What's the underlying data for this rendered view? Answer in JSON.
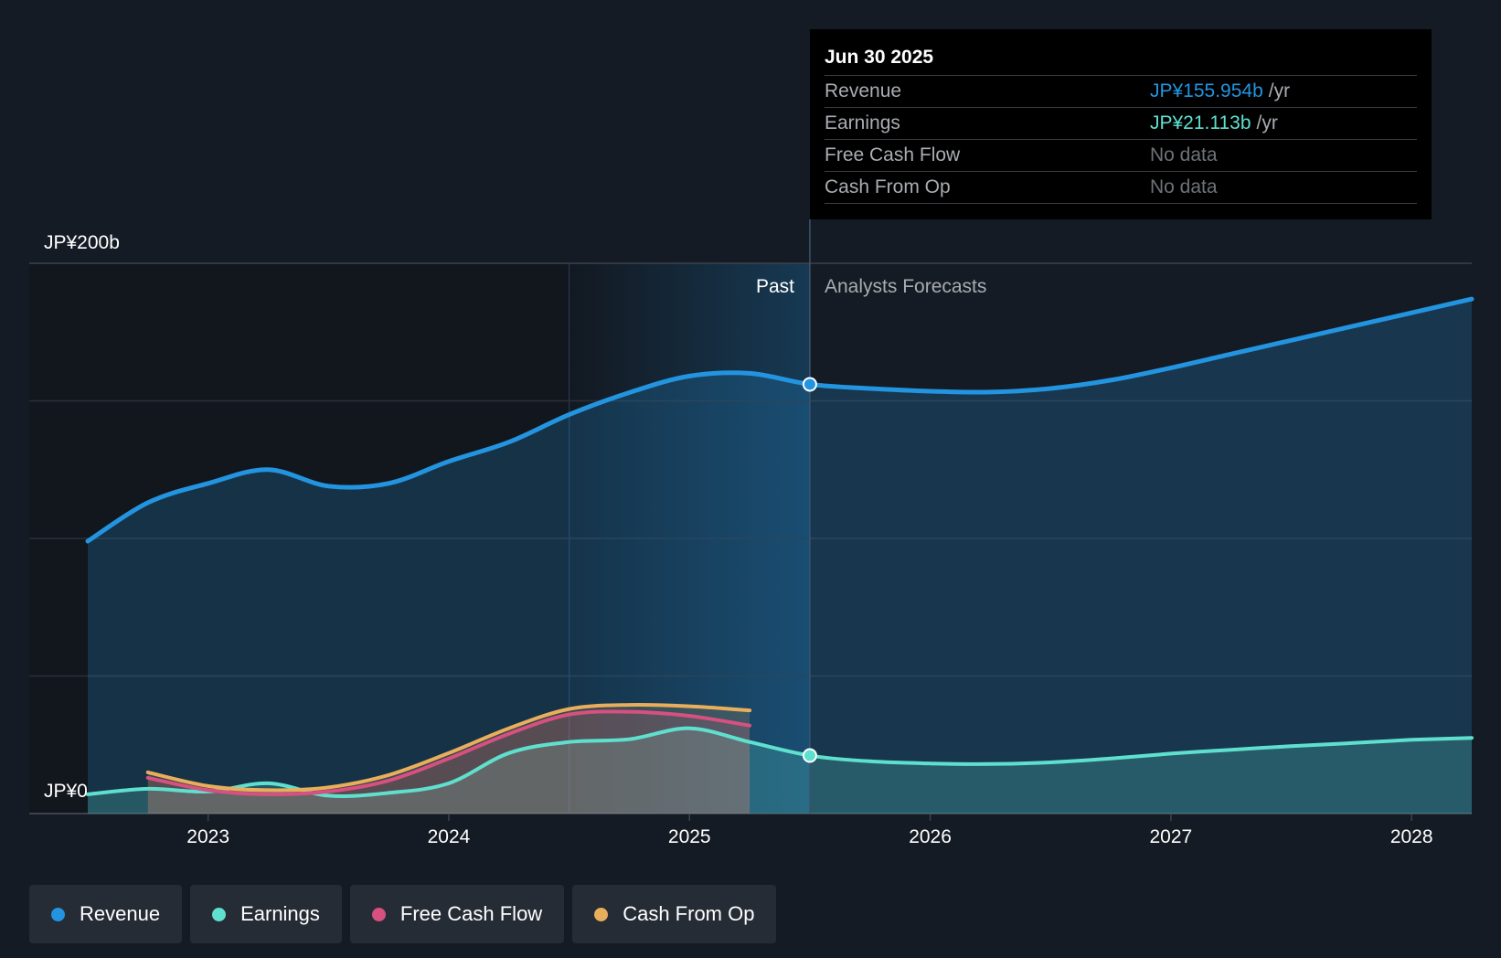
{
  "colors": {
    "background": "#151b24",
    "revenue": "#2394e0",
    "earnings": "#5fe0cf",
    "free_cash_flow": "#d6517f",
    "cash_from_op": "#e8ae5c",
    "muted": "#a9acb1"
  },
  "tooltip": {
    "date": "Jun 30 2025",
    "rows": [
      {
        "label": "Revenue",
        "value": "JP¥155.954b",
        "unit": "/yr",
        "color": "#2394e0"
      },
      {
        "label": "Earnings",
        "value": "JP¥21.113b",
        "unit": "/yr",
        "color": "#5fe0cf"
      },
      {
        "label": "Free Cash Flow",
        "value": "No data",
        "unit": "",
        "color": "#6e7277"
      },
      {
        "label": "Cash From Op",
        "value": "No data",
        "unit": "",
        "color": "#6e7277"
      }
    ]
  },
  "legend": [
    {
      "label": "Revenue",
      "color": "#2394e0"
    },
    {
      "label": "Earnings",
      "color": "#5fe0cf"
    },
    {
      "label": "Free Cash Flow",
      "color": "#d6517f"
    },
    {
      "label": "Cash From Op",
      "color": "#e8ae5c"
    }
  ],
  "chart_data": {
    "type": "area",
    "title": "",
    "y_top_label": "JP¥200b",
    "y_bottom_label": "JP¥0",
    "past_label": "Past",
    "forecast_label": "Analysts Forecasts",
    "ylim": [
      0,
      200
    ],
    "xlim": [
      2022.3,
      2028.25
    ],
    "x_ticks": [
      2023,
      2024,
      2025,
      2026,
      2027,
      2028
    ],
    "x_tick_labels": [
      "2023",
      "2024",
      "2025",
      "2026",
      "2027",
      "2028"
    ],
    "past_shade_start": 2024.5,
    "now": 2025.5,
    "series": [
      {
        "name": "Revenue",
        "key": "revenue",
        "points": [
          [
            2022.5,
            99
          ],
          [
            2022.75,
            113
          ],
          [
            2023.0,
            120
          ],
          [
            2023.25,
            125
          ],
          [
            2023.5,
            119
          ],
          [
            2023.75,
            120
          ],
          [
            2024.0,
            128
          ],
          [
            2024.25,
            135
          ],
          [
            2024.5,
            145
          ],
          [
            2024.75,
            153
          ],
          [
            2025.0,
            159
          ],
          [
            2025.25,
            160
          ],
          [
            2025.5,
            156
          ],
          [
            2025.75,
            154.5
          ],
          [
            2026.0,
            153.5
          ],
          [
            2026.25,
            153.2
          ],
          [
            2026.5,
            154.5
          ],
          [
            2026.75,
            157.5
          ],
          [
            2027.0,
            162
          ],
          [
            2027.25,
            167
          ],
          [
            2027.5,
            172
          ],
          [
            2027.75,
            177
          ],
          [
            2028.0,
            182
          ],
          [
            2028.25,
            187
          ]
        ]
      },
      {
        "name": "Earnings",
        "key": "earnings",
        "points": [
          [
            2022.5,
            7
          ],
          [
            2022.75,
            9
          ],
          [
            2023.0,
            8
          ],
          [
            2023.25,
            11
          ],
          [
            2023.5,
            6.5
          ],
          [
            2023.75,
            7.5
          ],
          [
            2024.0,
            11
          ],
          [
            2024.25,
            22
          ],
          [
            2024.5,
            26
          ],
          [
            2024.75,
            27
          ],
          [
            2025.0,
            31
          ],
          [
            2025.25,
            26
          ],
          [
            2025.5,
            21.1
          ],
          [
            2025.75,
            19
          ],
          [
            2026.0,
            18.2
          ],
          [
            2026.25,
            18
          ],
          [
            2026.5,
            18.6
          ],
          [
            2026.75,
            20
          ],
          [
            2027.0,
            21.8
          ],
          [
            2027.25,
            23.2
          ],
          [
            2027.5,
            24.5
          ],
          [
            2027.75,
            25.6
          ],
          [
            2028.0,
            26.8
          ],
          [
            2028.25,
            27.5
          ]
        ]
      },
      {
        "name": "Free Cash Flow",
        "key": "free_cash_flow",
        "points": [
          [
            2022.75,
            13
          ],
          [
            2023.0,
            8.5
          ],
          [
            2023.25,
            7
          ],
          [
            2023.5,
            8
          ],
          [
            2023.75,
            12
          ],
          [
            2024.0,
            20
          ],
          [
            2024.25,
            29
          ],
          [
            2024.5,
            36
          ],
          [
            2024.75,
            37
          ],
          [
            2025.0,
            35.5
          ],
          [
            2025.25,
            32
          ]
        ]
      },
      {
        "name": "Cash From Op",
        "key": "cash_from_op",
        "points": [
          [
            2022.75,
            15
          ],
          [
            2023.0,
            10
          ],
          [
            2023.25,
            8.5
          ],
          [
            2023.5,
            9.5
          ],
          [
            2023.75,
            14
          ],
          [
            2024.0,
            22
          ],
          [
            2024.25,
            31
          ],
          [
            2024.5,
            38
          ],
          [
            2024.75,
            39.5
          ],
          [
            2025.0,
            39
          ],
          [
            2025.25,
            37.5
          ]
        ]
      }
    ]
  }
}
